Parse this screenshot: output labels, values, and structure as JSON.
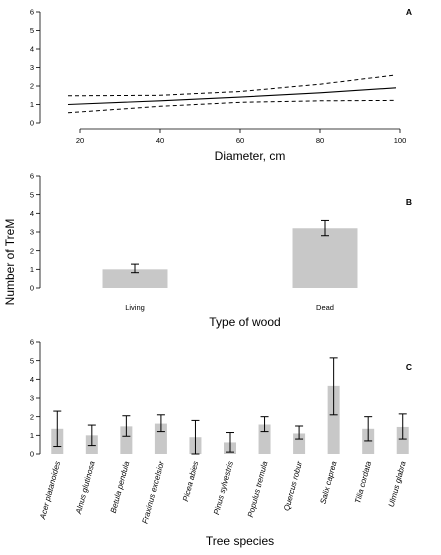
{
  "figure": {
    "shared_ylabel": "Number of TreM"
  },
  "chart_data": [
    {
      "panel": "A",
      "type": "line",
      "xlabel": "Diameter, cm",
      "xlim": [
        10,
        105
      ],
      "ylim": [
        0,
        6
      ],
      "xticks": [
        20,
        40,
        60,
        80,
        100
      ],
      "yticks": [
        0,
        1,
        2,
        3,
        4,
        5,
        6
      ],
      "series": [
        {
          "role": "fit",
          "x": [
            17,
            40,
            60,
            80,
            99
          ],
          "y": [
            1.0,
            1.2,
            1.4,
            1.63,
            1.9
          ]
        },
        {
          "role": "ci_upper",
          "x": [
            17,
            40,
            60,
            80,
            99
          ],
          "y": [
            1.47,
            1.5,
            1.7,
            2.1,
            2.6
          ]
        },
        {
          "role": "ci_lower",
          "x": [
            17,
            40,
            60,
            80,
            99
          ],
          "y": [
            0.55,
            0.9,
            1.12,
            1.2,
            1.22
          ]
        }
      ]
    },
    {
      "panel": "B",
      "type": "bar",
      "xlabel": "Type of wood",
      "categories": [
        "Living",
        "Dead"
      ],
      "values": [
        1.0,
        3.2
      ],
      "err_low": [
        0.82,
        2.8
      ],
      "err_high": [
        1.28,
        3.62
      ],
      "ylim": [
        0,
        6
      ],
      "yticks": [
        0,
        1,
        2,
        3,
        4,
        5,
        6
      ]
    },
    {
      "panel": "C",
      "type": "bar",
      "xlabel": "Tree species",
      "categories": [
        "Acer platanoides",
        "Alnus glutinosa",
        "Betula pendula",
        "Fraxinus excelsior",
        "Picea abies",
        "Pinus sylvestris",
        "Populus tremula",
        "Quercus robur",
        "Salix caprea",
        "Tilia cordata",
        "Ulmus glabra"
      ],
      "values": [
        1.35,
        1.0,
        1.48,
        1.63,
        0.9,
        0.62,
        1.58,
        1.1,
        3.65,
        1.35,
        1.45
      ],
      "err_low": [
        0.4,
        0.45,
        0.95,
        1.2,
        0.0,
        0.1,
        1.2,
        0.8,
        2.1,
        0.7,
        0.8
      ],
      "err_high": [
        2.3,
        1.55,
        2.05,
        2.1,
        1.8,
        1.15,
        2.0,
        1.5,
        5.15,
        2.0,
        2.15
      ],
      "ylim": [
        0,
        6
      ],
      "yticks": [
        0,
        1,
        2,
        3,
        4,
        5,
        6
      ]
    }
  ]
}
